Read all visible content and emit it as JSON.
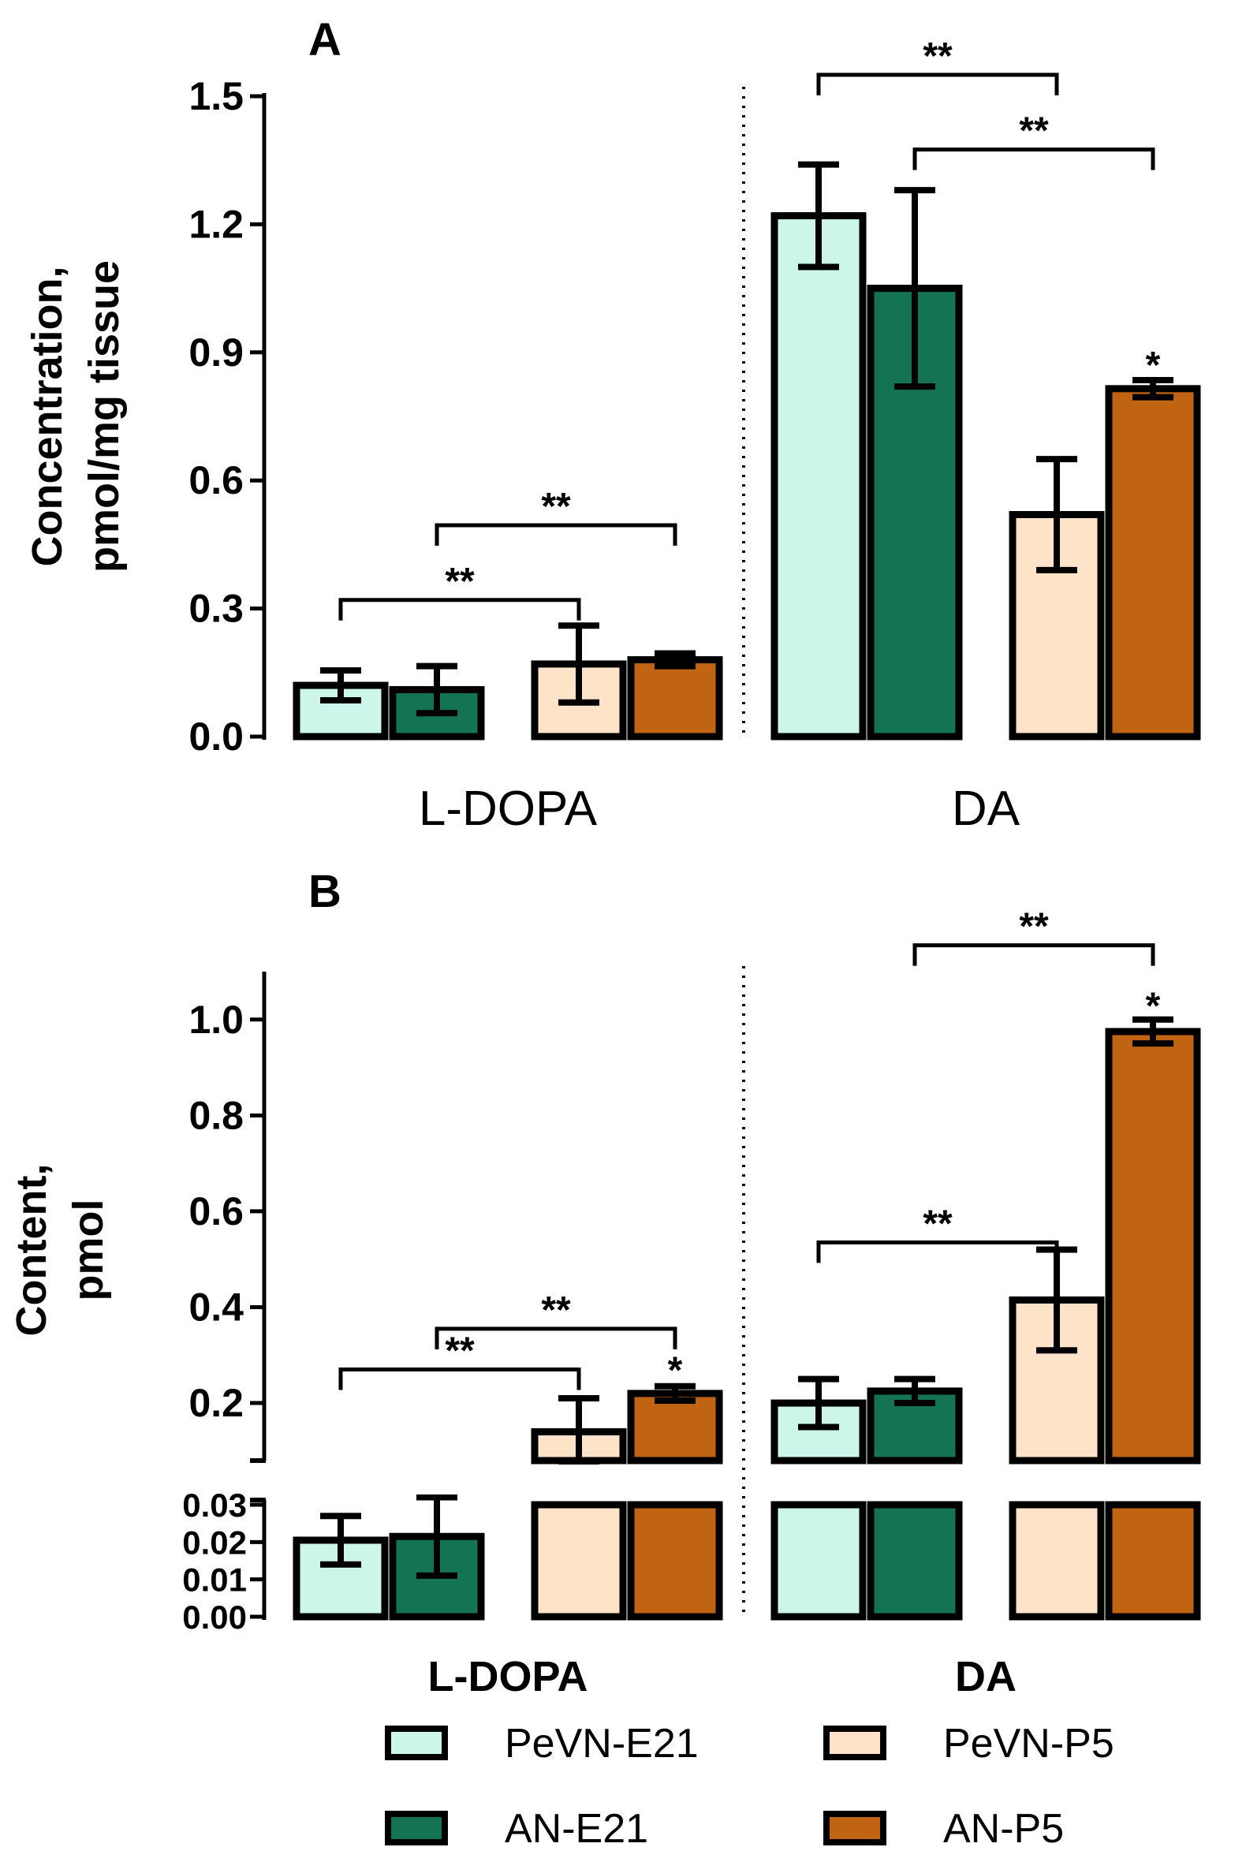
{
  "legend": [
    {
      "name": "PeVN-E21",
      "color": "#ccf6e9"
    },
    {
      "name": "AN-E21",
      "color": "#137352"
    },
    {
      "name": "PeVN-P5",
      "color": "#fde4c8"
    },
    {
      "name": "AN-P5",
      "color": "#c06414"
    }
  ],
  "chart_data": [
    {
      "panel": "A",
      "type": "bar",
      "ylabel": [
        "Concentration,",
        "pmol/mg tissue"
      ],
      "ylim": [
        0,
        1.5
      ],
      "yticks": [
        "0.0",
        "0.3",
        "0.6",
        "0.9",
        "1.2",
        "1.5"
      ],
      "categories": [
        "L-DOPA",
        "DA"
      ],
      "series": [
        {
          "name": "PeVN-E21",
          "values": [
            0.12,
            1.22
          ],
          "errors": [
            0.035,
            0.12
          ]
        },
        {
          "name": "AN-E21",
          "values": [
            0.11,
            1.05
          ],
          "errors": [
            0.055,
            0.23
          ]
        },
        {
          "name": "PeVN-P5",
          "values": [
            0.17,
            0.52
          ],
          "errors": [
            0.09,
            0.13
          ]
        },
        {
          "name": "AN-P5",
          "values": [
            0.18,
            0.815
          ],
          "errors": [
            0.015,
            0.02
          ]
        }
      ],
      "significance": [
        {
          "text": "**",
          "category": "L-DOPA",
          "from": "PeVN-E21",
          "to": "PeVN-P5",
          "level": 0.32
        },
        {
          "text": "**",
          "category": "L-DOPA",
          "from": "AN-E21",
          "to": "AN-P5",
          "level": 0.495
        },
        {
          "text": "**",
          "category": "DA",
          "from": "PeVN-E21",
          "to": "PeVN-P5",
          "level": 1.55
        },
        {
          "text": "**",
          "category": "DA",
          "from": "AN-E21",
          "to": "AN-P5",
          "level": 1.375
        },
        {
          "text": "*",
          "category": "DA",
          "series": "AN-P5",
          "level": 0.855
        }
      ]
    },
    {
      "panel": "B",
      "type": "bar",
      "ylabel": [
        "Content,",
        "pmol"
      ],
      "axis_break": true,
      "lower_ylim": [
        0,
        0.03
      ],
      "upper_ylim": [
        0.08,
        1.1
      ],
      "lower_yticks": [
        "0.00",
        "0.01",
        "0.02",
        "0.03"
      ],
      "upper_yticks": [
        "0.2",
        "0.4",
        "0.6",
        "0.8",
        "1.0"
      ],
      "categories": [
        "L-DOPA",
        "DA"
      ],
      "series": [
        {
          "name": "PeVN-E21",
          "values": [
            0.0205,
            0.2
          ],
          "errors": [
            0.0065,
            0.05
          ]
        },
        {
          "name": "AN-E21",
          "values": [
            0.0215,
            0.225
          ],
          "errors": [
            0.0105,
            0.025
          ]
        },
        {
          "name": "PeVN-P5",
          "values": [
            0.14,
            0.415
          ],
          "errors": [
            0.07,
            0.105
          ]
        },
        {
          "name": "AN-P5",
          "values": [
            0.22,
            0.975
          ],
          "errors": [
            0.015,
            0.025
          ]
        }
      ],
      "significance": [
        {
          "text": "**",
          "category": "L-DOPA",
          "from": "PeVN-E21",
          "to": "PeVN-P5",
          "level": 0.27
        },
        {
          "text": "**",
          "category": "L-DOPA",
          "from": "AN-E21",
          "to": "AN-P5",
          "level": 0.355
        },
        {
          "text": "*",
          "category": "L-DOPA",
          "series": "AN-P5",
          "level": 0.255
        },
        {
          "text": "**",
          "category": "DA",
          "from": "PeVN-E21",
          "to": "PeVN-P5",
          "level": 0.535
        },
        {
          "text": "**",
          "category": "DA",
          "from": "AN-E21",
          "to": "AN-P5",
          "level": 1.155
        },
        {
          "text": "*",
          "category": "DA",
          "series": "AN-P5",
          "level": 1.015
        }
      ]
    }
  ]
}
